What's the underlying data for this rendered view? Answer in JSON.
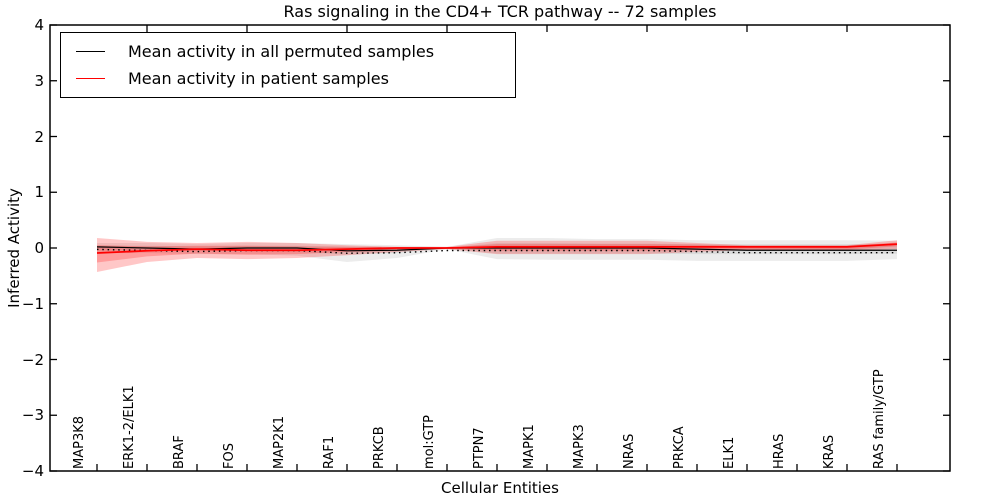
{
  "title": "Ras signaling in the CD4+ TCR pathway -- 72 samples",
  "axes": {
    "xlabel": "Cellular Entities",
    "ylabel": "Inferred Activity"
  },
  "legend": {
    "position": "upper left",
    "items": [
      {
        "label": "Mean activity in all permuted samples",
        "color": "#000000"
      },
      {
        "label": "Mean activity in patient samples",
        "color": "#ff0000"
      }
    ]
  },
  "chart_data": {
    "type": "line",
    "title": "Ras signaling in the CD4+ TCR pathway -- 72 samples",
    "xlabel": "Cellular Entities",
    "ylabel": "Inferred Activity",
    "ylim": [
      -4,
      4
    ],
    "yticks": [
      4,
      3,
      2,
      1,
      0,
      -1,
      -2,
      -3,
      -4
    ],
    "grid": false,
    "legend_position": "upper left",
    "categories": [
      "MAP3K8",
      "ERK1-2/ELK1",
      "BRAF",
      "FOS",
      "MAP2K1",
      "RAF1",
      "PRKCB",
      "mol:GTP",
      "PTPN7",
      "MAPK1",
      "MAPK3",
      "NRAS",
      "PRKCA",
      "ELK1",
      "HRAS",
      "KRAS",
      "RAS family/GTP"
    ],
    "series": [
      {
        "name": "Mean activity in all permuted samples",
        "color": "#000000",
        "line_style": "solid with small tick markers below",
        "values": [
          0.02,
          0.0,
          -0.02,
          0.0,
          0.0,
          -0.05,
          -0.04,
          0.0,
          0.0,
          0.0,
          0.0,
          0.0,
          -0.02,
          -0.04,
          -0.04,
          -0.04,
          -0.04
        ]
      },
      {
        "name": "Mean activity in patient samples",
        "color": "#ff0000",
        "line_style": "solid",
        "values": [
          -0.09,
          -0.05,
          -0.02,
          -0.04,
          -0.04,
          -0.02,
          0.0,
          0.0,
          0.02,
          0.02,
          0.02,
          0.02,
          0.02,
          0.02,
          0.02,
          0.02,
          0.07
        ]
      }
    ],
    "bands": [
      {
        "name": "permuted-samples-spread-outer",
        "color": "#777777",
        "opacity": 0.14,
        "upper": [
          0.09,
          0.09,
          0.07,
          0.09,
          0.09,
          0.07,
          0.05,
          0.02,
          0.18,
          0.18,
          0.16,
          0.16,
          0.14,
          0.14,
          0.14,
          0.14,
          0.13
        ],
        "lower": [
          -0.09,
          -0.09,
          -0.11,
          -0.11,
          -0.14,
          -0.25,
          -0.18,
          -0.02,
          -0.2,
          -0.21,
          -0.21,
          -0.21,
          -0.23,
          -0.23,
          -0.23,
          -0.23,
          -0.2
        ]
      },
      {
        "name": "permuted-samples-spread-inner",
        "color": "#777777",
        "opacity": 0.14,
        "upper": [
          0.04,
          0.04,
          0.03,
          0.04,
          0.04,
          0.03,
          0.02,
          0.01,
          0.09,
          0.09,
          0.08,
          0.08,
          0.07,
          0.07,
          0.07,
          0.07,
          0.06
        ],
        "lower": [
          -0.04,
          -0.04,
          -0.05,
          -0.05,
          -0.07,
          -0.12,
          -0.09,
          -0.01,
          -0.1,
          -0.1,
          -0.1,
          -0.1,
          -0.11,
          -0.11,
          -0.11,
          -0.11,
          -0.1
        ]
      },
      {
        "name": "patient-samples-spread-outer",
        "color": "#ff0000",
        "opacity": 0.22,
        "upper": [
          0.18,
          0.11,
          0.09,
          0.11,
          0.09,
          0.05,
          0.02,
          0.02,
          0.13,
          0.13,
          0.13,
          0.13,
          0.09,
          0.05,
          0.05,
          0.05,
          0.14
        ],
        "lower": [
          -0.43,
          -0.25,
          -0.18,
          -0.2,
          -0.18,
          -0.13,
          -0.07,
          -0.02,
          -0.11,
          -0.11,
          -0.11,
          -0.11,
          -0.07,
          -0.04,
          -0.04,
          -0.04,
          -0.02
        ]
      },
      {
        "name": "patient-samples-spread-inner",
        "color": "#ff0000",
        "opacity": 0.22,
        "upper": [
          0.05,
          0.03,
          0.04,
          0.04,
          0.03,
          0.02,
          0.01,
          0.01,
          0.07,
          0.07,
          0.07,
          0.07,
          0.06,
          0.04,
          0.04,
          0.04,
          0.1
        ],
        "lower": [
          -0.26,
          -0.15,
          -0.1,
          -0.12,
          -0.11,
          -0.07,
          -0.04,
          -0.01,
          -0.05,
          -0.05,
          -0.05,
          -0.05,
          -0.04,
          -0.03,
          -0.03,
          -0.03,
          0.03
        ]
      }
    ]
  }
}
